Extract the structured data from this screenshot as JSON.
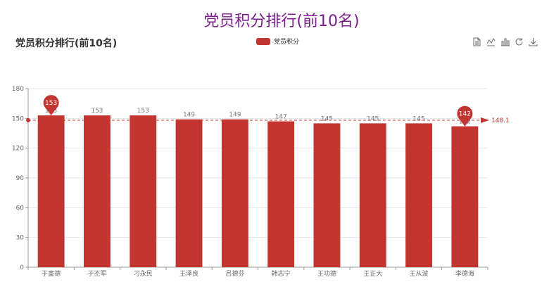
{
  "page": {
    "title": "党员积分排行(前10名)"
  },
  "toolbox": [
    "data-view-icon",
    "line-chart-icon",
    "bar-chart-icon",
    "restore-icon",
    "download-icon"
  ],
  "colors": {
    "bar": "#c23531",
    "axis": "#999999",
    "grid": "#e6e6e6",
    "title": "#7b1f8c"
  },
  "chart_data": {
    "type": "bar",
    "title": "党员积分排行(前10名)",
    "legend": [
      "党员积分"
    ],
    "legend_position": "top-center",
    "categories": [
      "于童德",
      "于丕军",
      "刁永民",
      "王泽良",
      "吕德芬",
      "韩志宁",
      "王功德",
      "王正大",
      "王从波",
      "李德海"
    ],
    "series": [
      {
        "name": "党员积分",
        "values": [
          153,
          153,
          153,
          149,
          149,
          147,
          145,
          145,
          145,
          142
        ]
      }
    ],
    "ylim": [
      0,
      180
    ],
    "yticks": [
      0,
      30,
      60,
      90,
      120,
      150,
      180
    ],
    "grid": true,
    "mark_points": [
      {
        "label": "153",
        "category": "于童德",
        "value": 153
      },
      {
        "label": "142",
        "category": "李德海",
        "value": 142
      }
    ],
    "mark_line": {
      "label": "148.1",
      "value": 148.1
    }
  }
}
